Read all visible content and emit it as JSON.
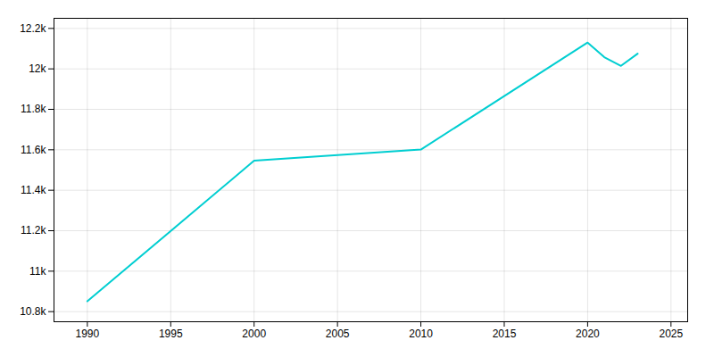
{
  "chart_data": {
    "type": "line",
    "x": [
      1990,
      2000,
      2010,
      2020,
      2021,
      2022,
      2023
    ],
    "values": [
      10851,
      11546,
      11601,
      12130,
      12058,
      12015,
      12075
    ],
    "color": "#00CED1",
    "xlim": [
      1988,
      2026
    ],
    "xticks": [
      1990,
      1995,
      2000,
      2005,
      2010,
      2015,
      2020,
      2025
    ],
    "ylim": [
      10750,
      12250
    ],
    "yticks": [
      {
        "value": 10800,
        "label": "10.8k"
      },
      {
        "value": 11000,
        "label": "11k"
      },
      {
        "value": 11200,
        "label": "11.2k"
      },
      {
        "value": 11400,
        "label": "11.4k"
      },
      {
        "value": 11600,
        "label": "11.6k"
      },
      {
        "value": 11800,
        "label": "11.8k"
      },
      {
        "value": 12000,
        "label": "12k"
      },
      {
        "value": 12200,
        "label": "12.2k"
      }
    ],
    "grid": true
  }
}
